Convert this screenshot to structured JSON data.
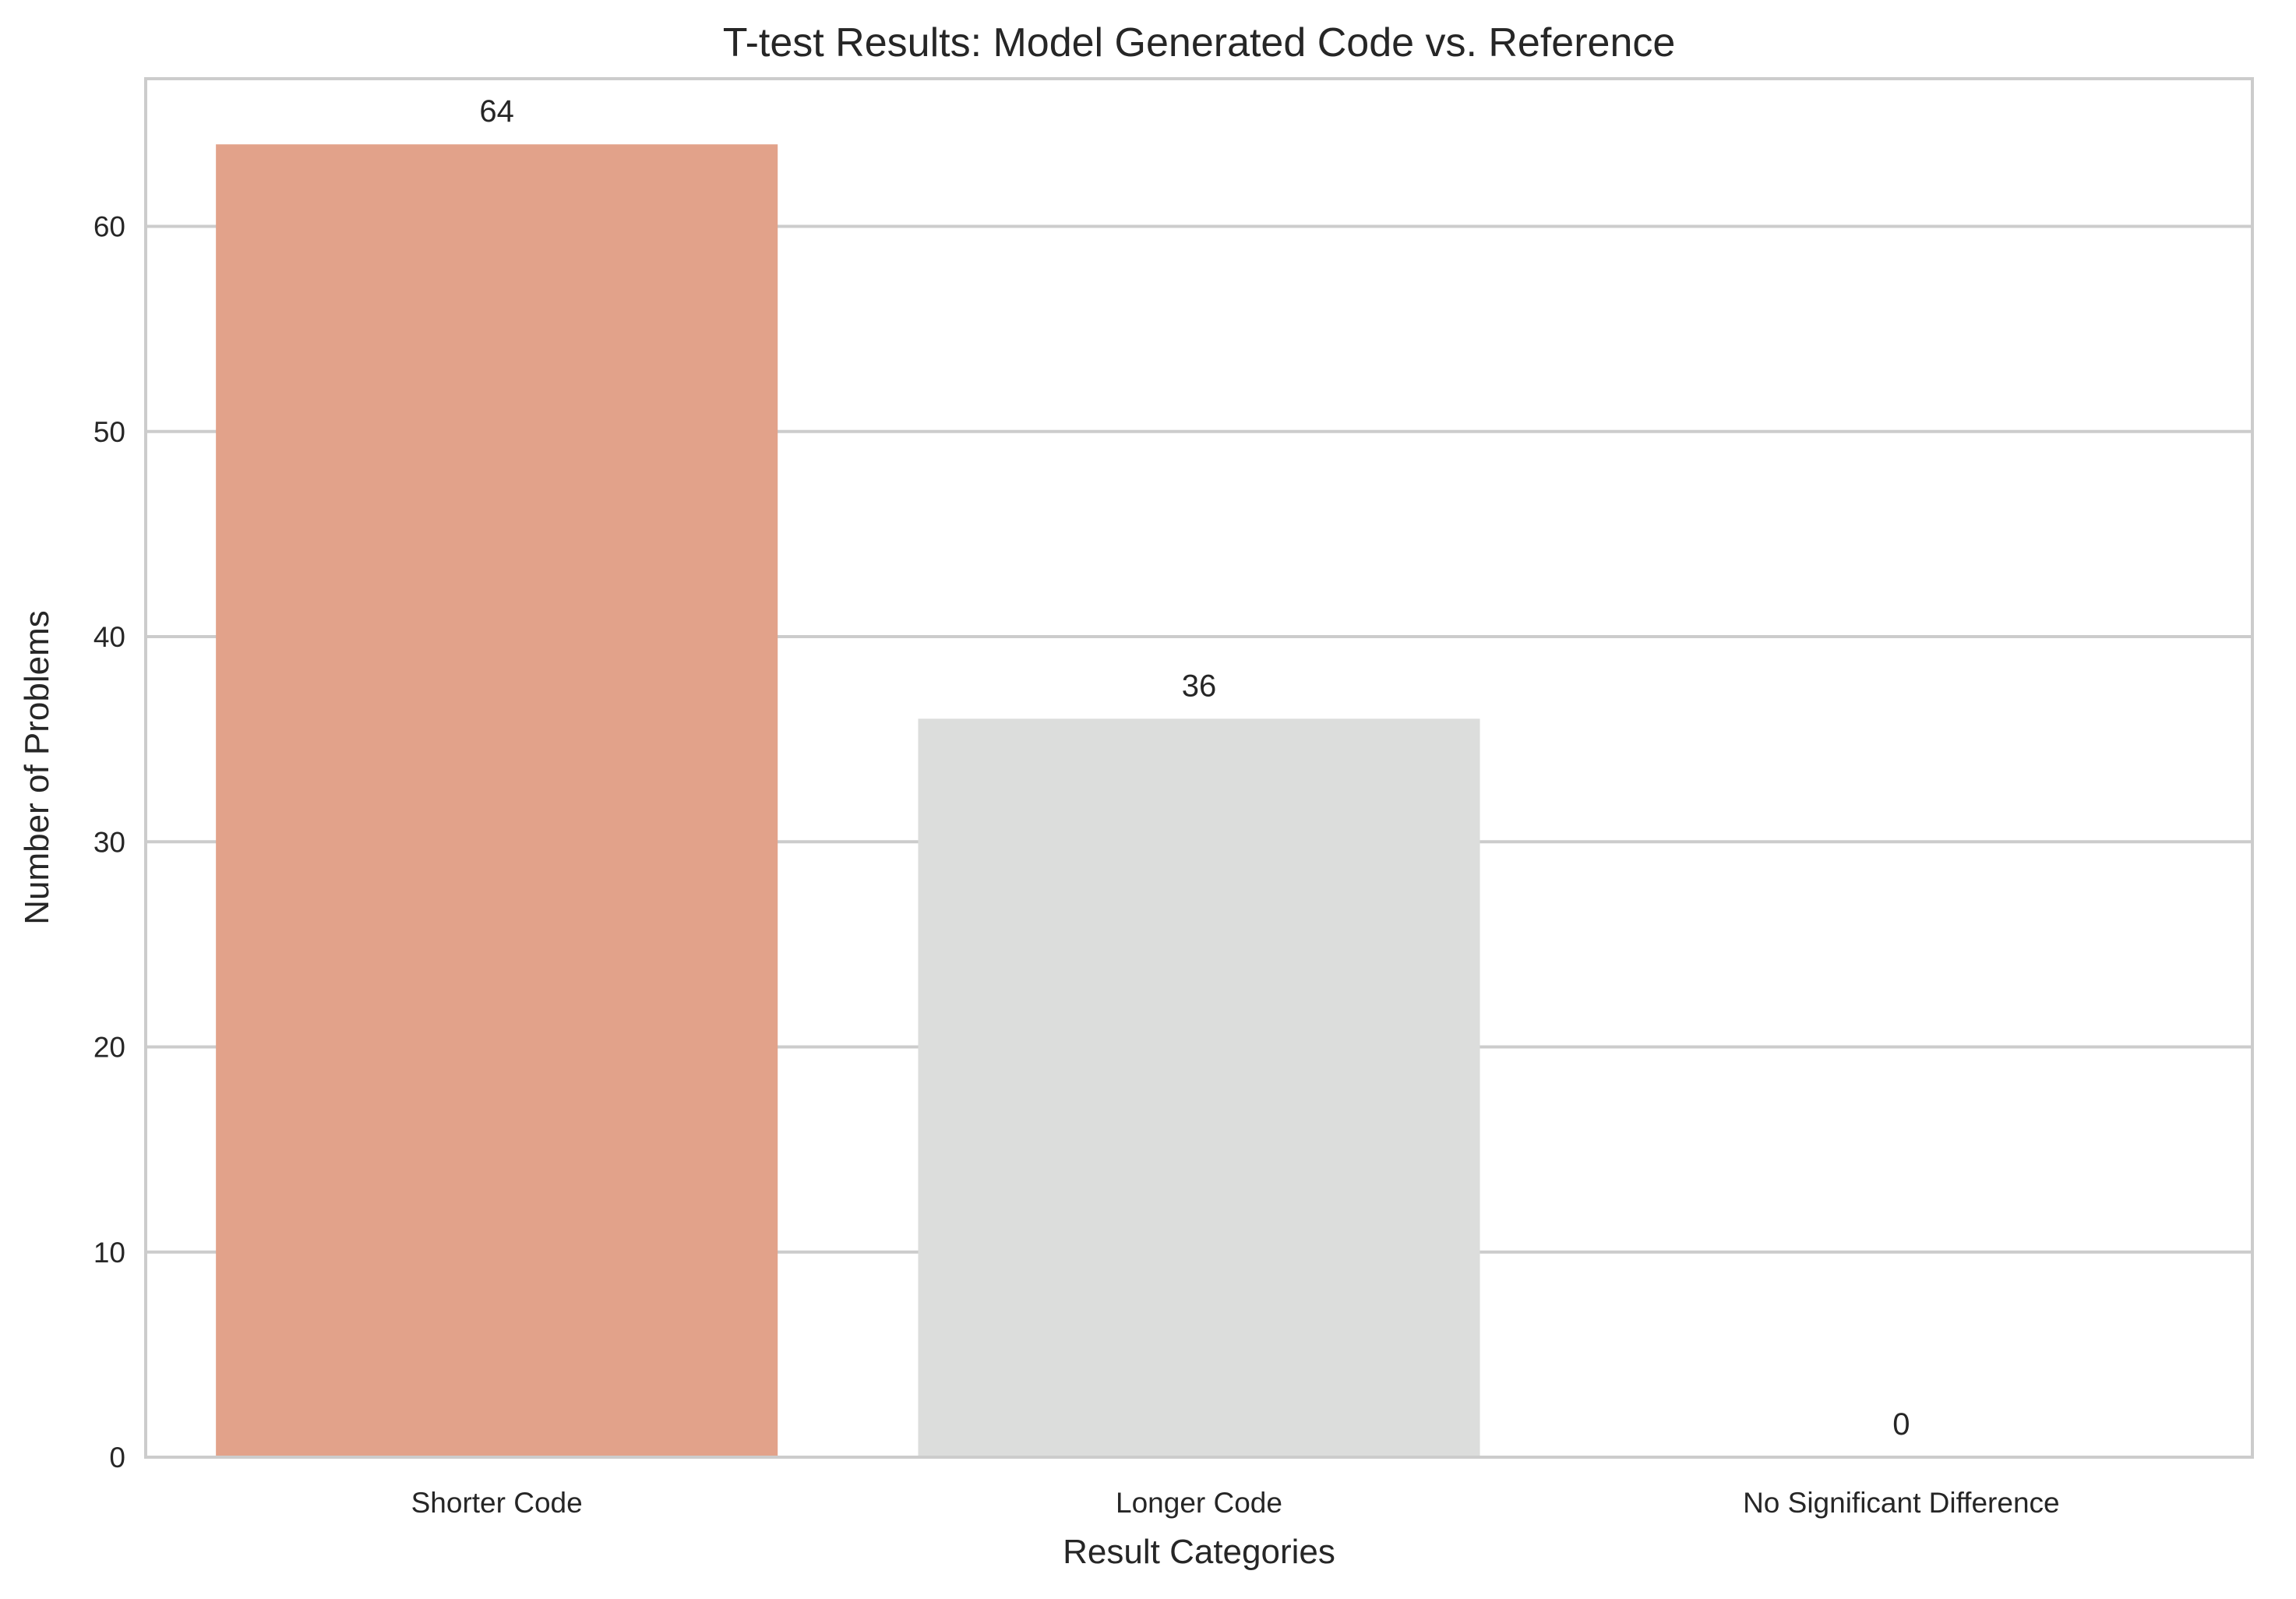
{
  "chart_data": {
    "type": "bar",
    "title": "T-test Results: Model Generated Code vs. Reference",
    "xlabel": "Result Categories",
    "ylabel": "Number of Problems",
    "categories": [
      "Shorter Code",
      "Longer Code",
      "No Significant Difference"
    ],
    "values": [
      64,
      36,
      0
    ],
    "data_labels": [
      "64",
      "36",
      "0"
    ],
    "colors": [
      "#e2a28a",
      "#dcdddc",
      "#8fb6d9"
    ],
    "ylim": [
      0,
      67.2
    ],
    "yticks": [
      0,
      10,
      20,
      30,
      40,
      50,
      60
    ],
    "ytick_labels": [
      "0",
      "10",
      "20",
      "30",
      "40",
      "50",
      "60"
    ],
    "grid": true,
    "grid_axis": "y",
    "grid_color": "#cccccc",
    "spine_color": "#cccccc",
    "background": "#ffffff"
  }
}
